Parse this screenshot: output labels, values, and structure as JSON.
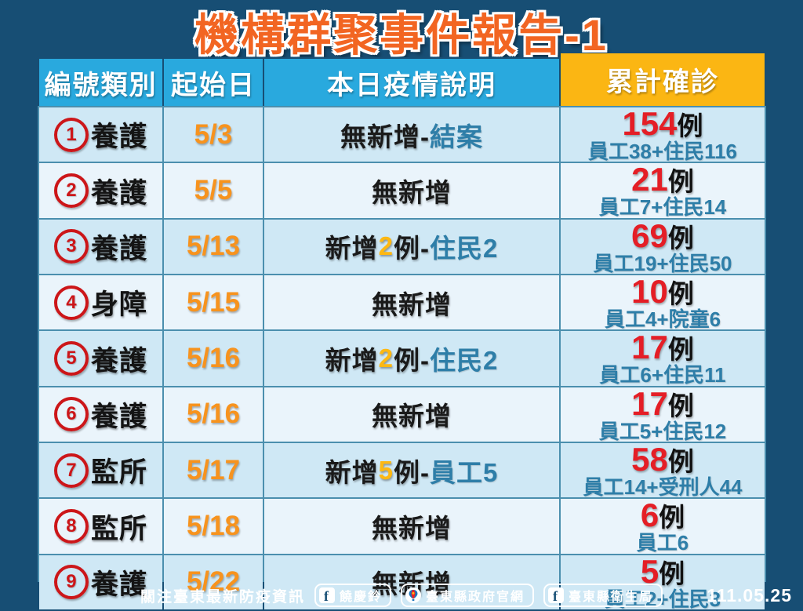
{
  "page": {
    "title": "機構群聚事件報告-1",
    "date": "111.05.25"
  },
  "colors": {
    "background": "#174E74",
    "title_orange": "#F26522",
    "header_cyan": "#29A9DE",
    "header_yellow": "#FBB613",
    "row_light": "#CFE8F5",
    "row_lighter": "#EAF4FB",
    "count_red": "#E41E26",
    "detail_teal": "#2E7EA8",
    "date_orange": "#F7931E",
    "highlight_gold": "#FDB813",
    "circle_red": "#CC1619"
  },
  "table": {
    "headers": [
      "編號類別",
      "起始日",
      "本日疫情說明",
      "累計確診"
    ],
    "rows": [
      {
        "num": "1",
        "category": "養護",
        "start_date": "5/3",
        "description": [
          {
            "t": "無新增-",
            "s": "main"
          },
          {
            "t": "結案",
            "s": "note"
          }
        ],
        "total": {
          "count": "154",
          "unit": "例",
          "breakdown": "員工38+住民116"
        }
      },
      {
        "num": "2",
        "category": "養護",
        "start_date": "5/5",
        "description": [
          {
            "t": "無新增",
            "s": "main"
          }
        ],
        "total": {
          "count": "21",
          "unit": "例",
          "breakdown": "員工7+住民14"
        }
      },
      {
        "num": "3",
        "category": "養護",
        "start_date": "5/13",
        "description": [
          {
            "t": "新增",
            "s": "main"
          },
          {
            "t": "2",
            "s": "hl"
          },
          {
            "t": "例-",
            "s": "main"
          },
          {
            "t": "住民2",
            "s": "note"
          }
        ],
        "total": {
          "count": "69",
          "unit": "例",
          "breakdown": "員工19+住民50"
        }
      },
      {
        "num": "4",
        "category": "身障",
        "start_date": "5/15",
        "description": [
          {
            "t": "無新增",
            "s": "main"
          }
        ],
        "total": {
          "count": "10",
          "unit": "例",
          "breakdown": "員工4+院童6"
        }
      },
      {
        "num": "5",
        "category": "養護",
        "start_date": "5/16",
        "description": [
          {
            "t": "新增",
            "s": "main"
          },
          {
            "t": "2",
            "s": "hl"
          },
          {
            "t": "例-",
            "s": "main"
          },
          {
            "t": "住民2",
            "s": "note"
          }
        ],
        "total": {
          "count": "17",
          "unit": "例",
          "breakdown": "員工6+住民11"
        }
      },
      {
        "num": "6",
        "category": "養護",
        "start_date": "5/16",
        "description": [
          {
            "t": "無新增",
            "s": "main"
          }
        ],
        "total": {
          "count": "17",
          "unit": "例",
          "breakdown": "員工5+住民12"
        }
      },
      {
        "num": "7",
        "category": "監所",
        "start_date": "5/17",
        "description": [
          {
            "t": "新增",
            "s": "main"
          },
          {
            "t": "5",
            "s": "hl"
          },
          {
            "t": "例-",
            "s": "main"
          },
          {
            "t": "員工5",
            "s": "note"
          }
        ],
        "total": {
          "count": "58",
          "unit": "例",
          "breakdown": "員工14+受刑人44"
        }
      },
      {
        "num": "8",
        "category": "監所",
        "start_date": "5/18",
        "description": [
          {
            "t": "無新增",
            "s": "main"
          }
        ],
        "total": {
          "count": "6",
          "unit": "例",
          "breakdown": "員工6"
        }
      },
      {
        "num": "9",
        "category": "養護",
        "start_date": "5/22",
        "description": [
          {
            "t": "無新增",
            "s": "main"
          }
        ],
        "total": {
          "count": "5",
          "unit": "例",
          "breakdown": "員工2+住民3"
        }
      }
    ]
  },
  "footer": {
    "label": "關注臺東最新防疫資訊",
    "badges": [
      {
        "icon": "facebook-icon",
        "glyph": "f",
        "label": "饒慶鈴"
      },
      {
        "icon": "taitung-gov-icon",
        "glyph": "",
        "label": "臺東縣政府官網"
      },
      {
        "icon": "facebook-icon",
        "glyph": "f",
        "label": "臺東縣衛生局"
      }
    ]
  }
}
